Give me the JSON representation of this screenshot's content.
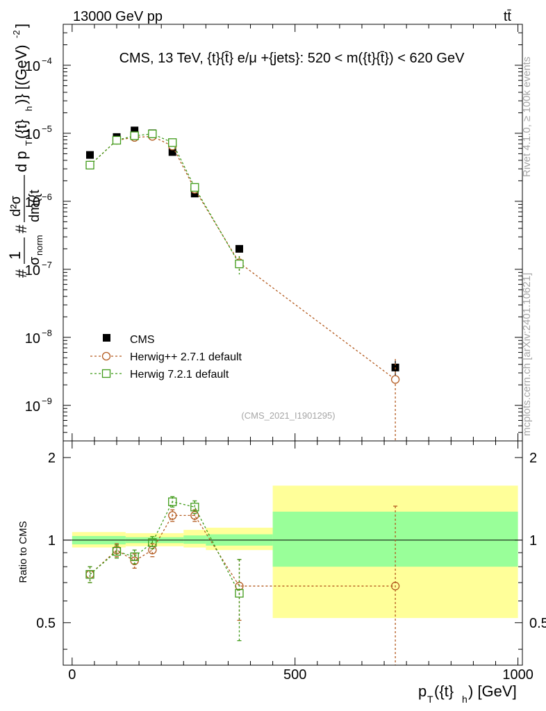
{
  "header": {
    "energy_label": "13000 GeV pp",
    "process_label": "tt̄"
  },
  "side_labels": {
    "rivet": "Rivet 4.1.0, ≥ 100k events",
    "source": "mcplots.cern.ch [arXiv:2401.10621]"
  },
  "colors": {
    "data": "#000000",
    "herwigpp": "#b35a1f",
    "herwig7": "#3e9a17",
    "band_yellow": "#ffff99",
    "band_green": "#99ff99"
  },
  "chart_data": [
    {
      "type": "scatter",
      "name": "main",
      "title": "CMS, 13 TeV, {t}{t̄} e/μ +{jets}: 520 < m({t}{t̄}) < 620 GeV",
      "ylabel": "#1/σ_norm #d²σ/dm({t}{t̄}) d p_T({t}_h) [(GeV)⁻²]",
      "ylabel_parts": {
        "hash1": "#",
        "one": "1",
        "sigma": "σ",
        "norm": "norm",
        "hash2": "#",
        "num": "d²σ",
        "den": "dm({t",
        "rest": "d p",
        "T": "T",
        "arg": "({t}",
        "h": "h",
        "unit": ")} [(GeV)",
        "exp": "-2",
        "close": "]"
      },
      "yscale": "log",
      "ylim": [
        3e-10,
        0.0004
      ],
      "xlim": [
        -20,
        1010
      ],
      "ytick_labels": [
        {
          "mant": "10",
          "exp": "−9"
        },
        {
          "mant": "10",
          "exp": "−8"
        },
        {
          "mant": "10",
          "exp": "−7"
        },
        {
          "mant": "10",
          "exp": "−6"
        },
        {
          "mant": "10",
          "exp": "−5"
        },
        {
          "mant": "10",
          "exp": "−4"
        }
      ],
      "watermark": "(CMS_2021_I1901295)",
      "series": [
        {
          "name": "CMS",
          "marker": "filled-square",
          "x": [
            40,
            100,
            140,
            180,
            225,
            275,
            375,
            725
          ],
          "y": [
            4.8e-06,
            8.8e-06,
            1.1e-05,
            1e-05,
            5.3e-06,
            1.3e-06,
            2e-07,
            3.6e-09
          ],
          "yerr": [
            0.03,
            0.03,
            0.03,
            0.03,
            0.04,
            0.05,
            0.08,
            0.25
          ]
        },
        {
          "name": "Herwig++ 2.7.1 default",
          "marker": "open-circle",
          "x": [
            40,
            100,
            140,
            180,
            225,
            275,
            375,
            725
          ],
          "y": [
            3.4e-06,
            7.9e-06,
            8.7e-06,
            9e-06,
            6.5e-06,
            1.5e-06,
            1.25e-07,
            2.4e-09
          ],
          "yerr": [
            0.04,
            0.04,
            0.04,
            0.04,
            0.04,
            0.06,
            0.25,
            1.0
          ]
        },
        {
          "name": "Herwig 7.2.1 default",
          "marker": "open-square",
          "x": [
            40,
            100,
            140,
            180,
            225,
            275,
            375
          ],
          "y": [
            3.4e-06,
            7.9e-06,
            9.2e-06,
            9.8e-06,
            7.3e-06,
            1.6e-06,
            1.2e-07
          ],
          "yerr": [
            0.04,
            0.04,
            0.04,
            0.04,
            0.04,
            0.06,
            0.3
          ]
        }
      ]
    },
    {
      "type": "scatter",
      "name": "ratio",
      "ylabel": "Ratio to CMS",
      "xlabel": "p_T({t}_h) [GeV]",
      "xlabel_parts": {
        "p": "p",
        "T": "T",
        "arg": "({t}",
        "h": "h",
        "unit": ") [GeV]"
      },
      "ylim": [
        0.35,
        2.3
      ],
      "xlim": [
        -20,
        1010
      ],
      "xticks": [
        0,
        500,
        1000
      ],
      "xtick_labels": [
        "0",
        "500",
        "1000"
      ],
      "yticks": [
        0.5,
        1,
        2
      ],
      "ytick_labels": [
        "0.5",
        "1",
        "2"
      ],
      "bands": [
        {
          "x0": 0,
          "x1": 120,
          "yellow": [
            0.94,
            1.07
          ],
          "green": [
            0.965,
            1.035
          ]
        },
        {
          "x0": 120,
          "x1": 250,
          "yellow": [
            0.95,
            1.06
          ],
          "green": [
            0.975,
            1.025
          ]
        },
        {
          "x0": 250,
          "x1": 300,
          "yellow": [
            0.94,
            1.09
          ],
          "green": [
            0.97,
            1.04
          ]
        },
        {
          "x0": 300,
          "x1": 450,
          "yellow": [
            0.92,
            1.11
          ],
          "green": [
            0.955,
            1.05
          ]
        },
        {
          "x0": 450,
          "x1": 1000,
          "yellow": [
            0.52,
            1.58
          ],
          "green": [
            0.8,
            1.27
          ]
        }
      ],
      "series": [
        {
          "name": "Herwig++ 2.7.1 default",
          "x": [
            40,
            100,
            140,
            180,
            225,
            275,
            375,
            725
          ],
          "y": [
            0.75,
            0.92,
            0.84,
            0.92,
            1.23,
            1.23,
            0.68,
            0.68
          ],
          "yerr": [
            0.05,
            0.05,
            0.05,
            0.05,
            0.06,
            0.06,
            0.17,
            0.65
          ],
          "xerr_step": [
            [
              375,
              725
            ]
          ]
        },
        {
          "name": "Herwig 7.2.1 default",
          "x": [
            40,
            100,
            140,
            180,
            225,
            275,
            375
          ],
          "y": [
            0.75,
            0.91,
            0.87,
            0.98,
            1.38,
            1.32,
            0.64
          ],
          "yerr": [
            0.05,
            0.05,
            0.05,
            0.05,
            0.06,
            0.07,
            0.21
          ]
        }
      ]
    }
  ]
}
